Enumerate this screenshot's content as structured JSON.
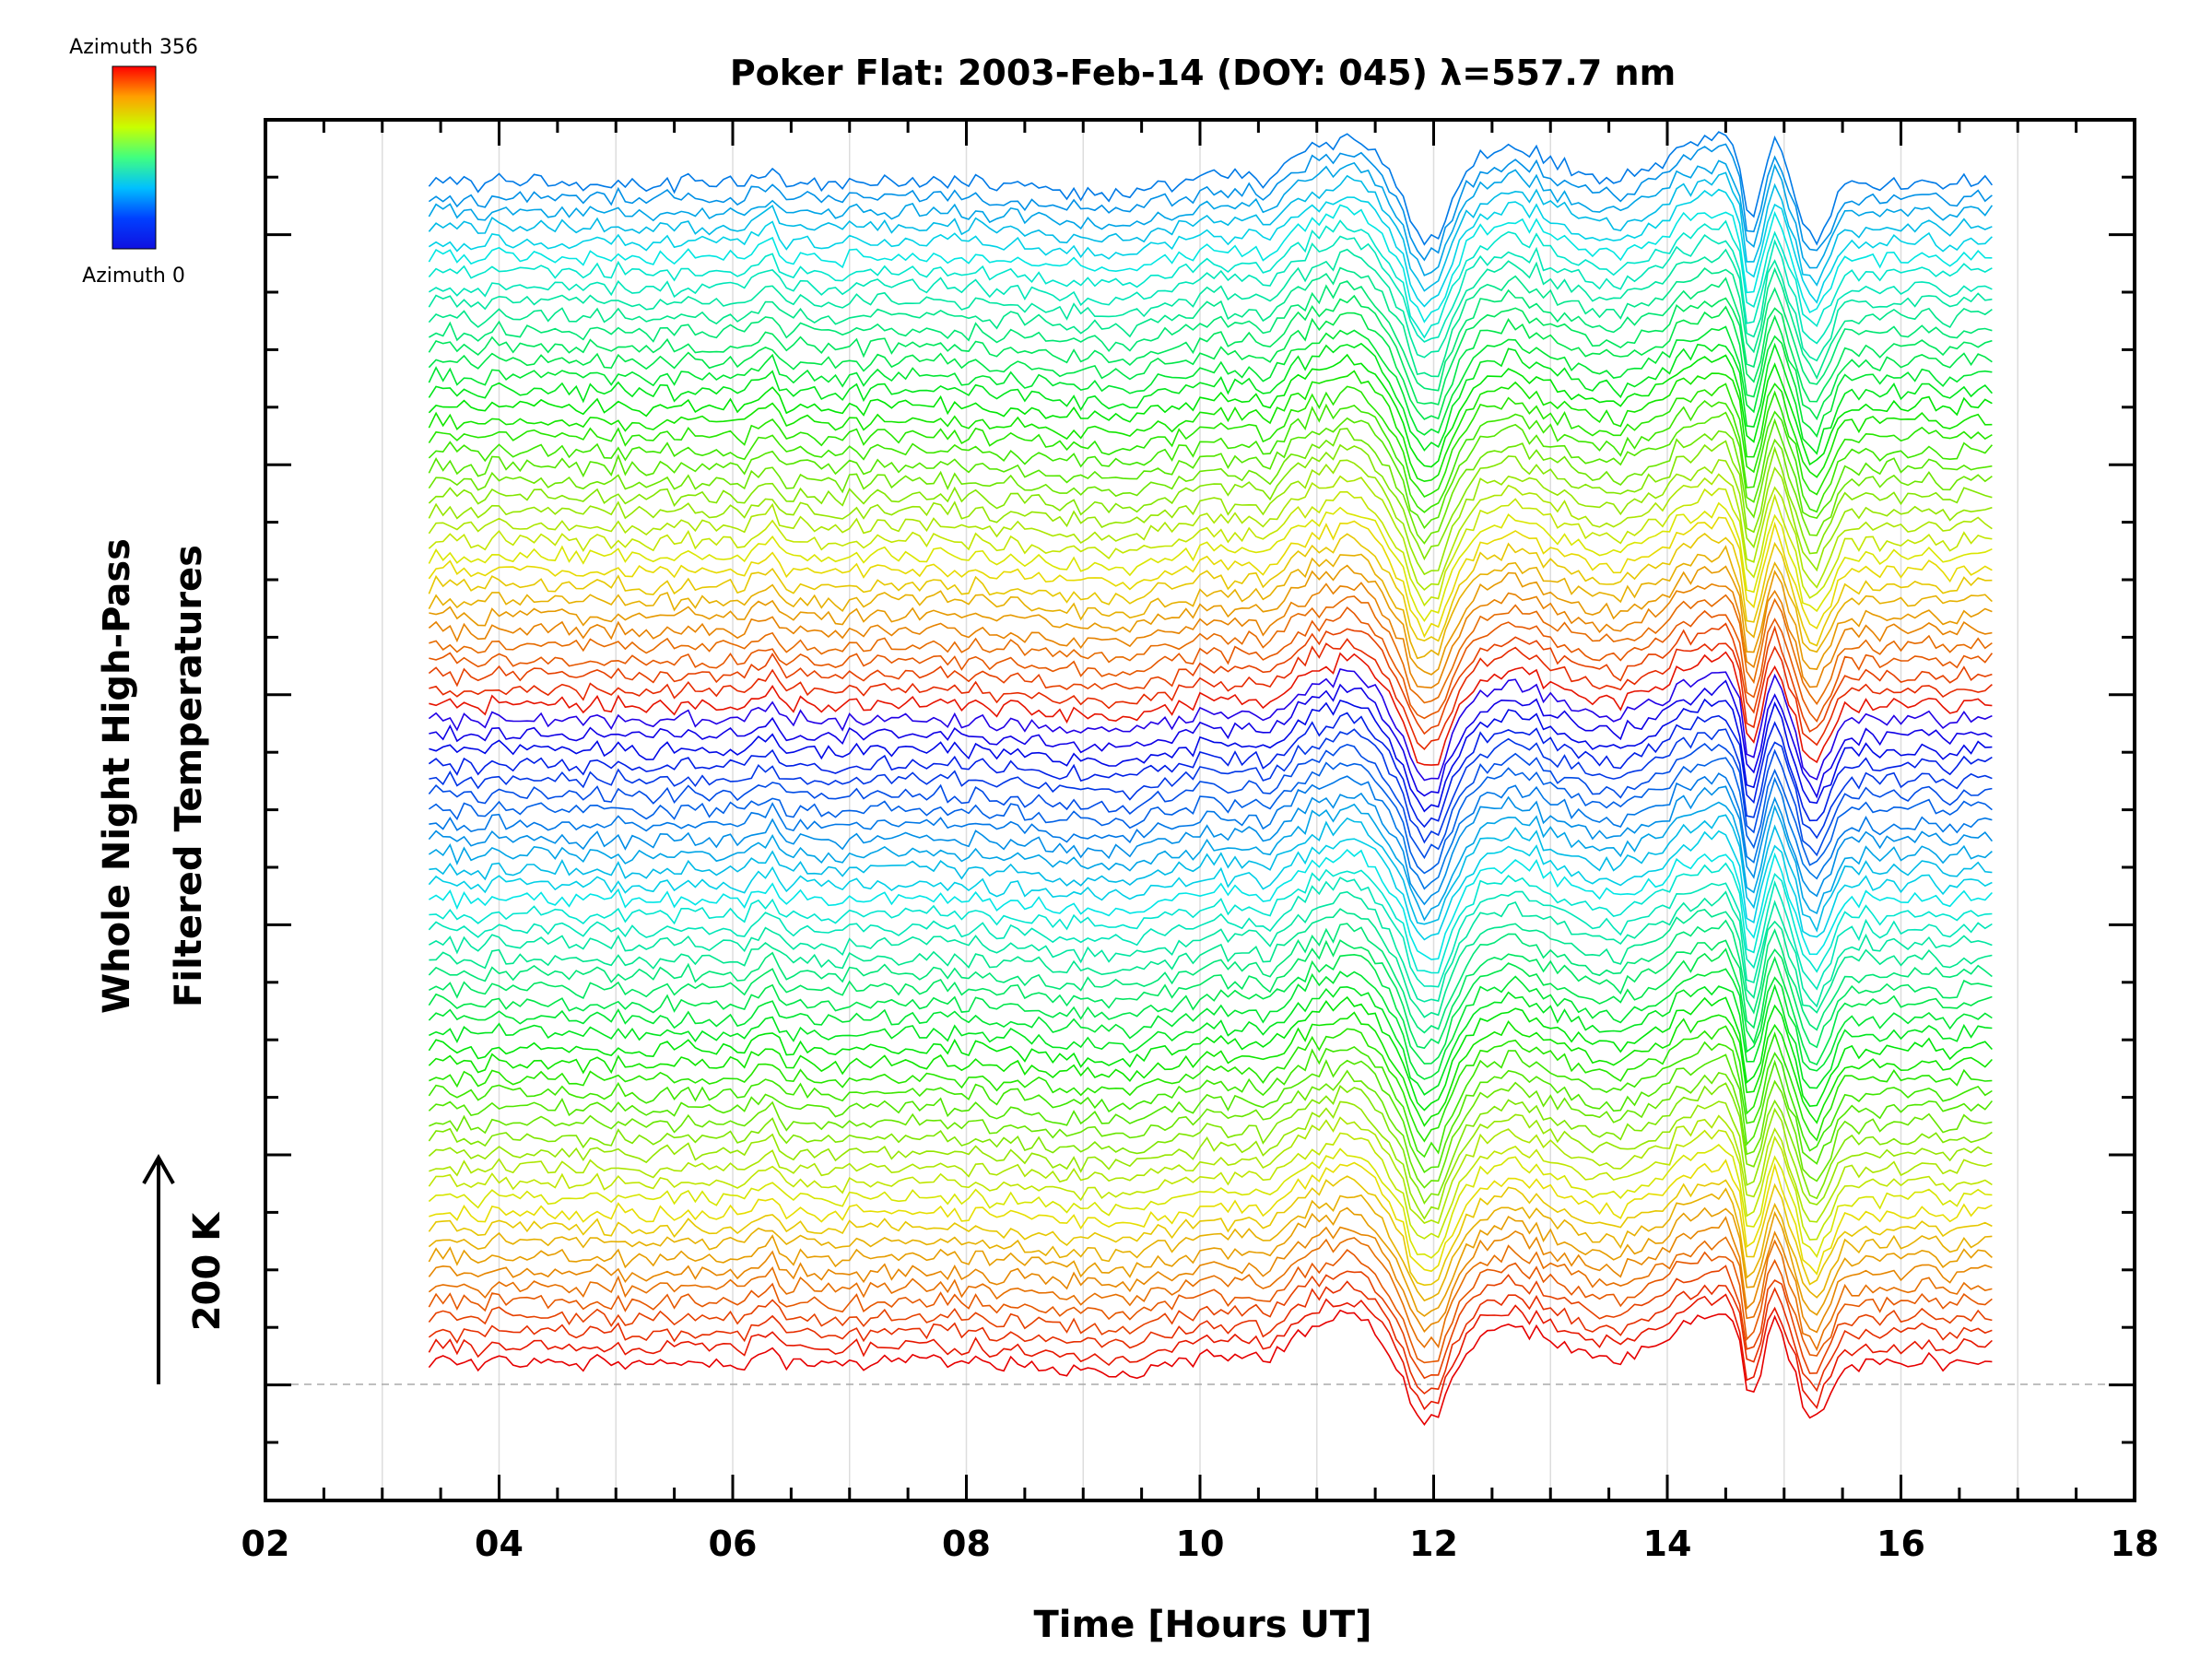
{
  "chart_data": {
    "type": "line",
    "title": "Poker Flat: 2003-Feb-14 (DOY: 045) λ=557.7 nm",
    "xlabel": "Time [Hours UT]",
    "ylabel_line1": "Whole Night High-Pass",
    "ylabel_line2": "Filtered Temperatures",
    "scale_label": "200 K",
    "xlim": [
      2,
      18
    ],
    "x_ticks": [
      "02",
      "04",
      "06",
      "08",
      "10",
      "12",
      "14",
      "16",
      "18"
    ],
    "x_start": 3.4,
    "x_end": 16.8,
    "trace_count": 80,
    "colorbar": {
      "top_label": "Azimuth 356",
      "bottom_label": "Azimuth 0",
      "colors": [
        "#ff0000",
        "#ffa000",
        "#c8ff00",
        "#40ff80",
        "#00c0ff",
        "#0040ff",
        "#1010e0"
      ]
    },
    "grid": "vertical",
    "features": [
      {
        "time": 11.3,
        "type": "peak"
      },
      {
        "time": 11.9,
        "type": "trough"
      },
      {
        "time": 12.6,
        "type": "peak"
      },
      {
        "time": 14.5,
        "type": "peak"
      },
      {
        "time": 14.7,
        "type": "trough"
      },
      {
        "time": 14.9,
        "type": "peak"
      },
      {
        "time": 15.2,
        "type": "trough"
      }
    ]
  }
}
